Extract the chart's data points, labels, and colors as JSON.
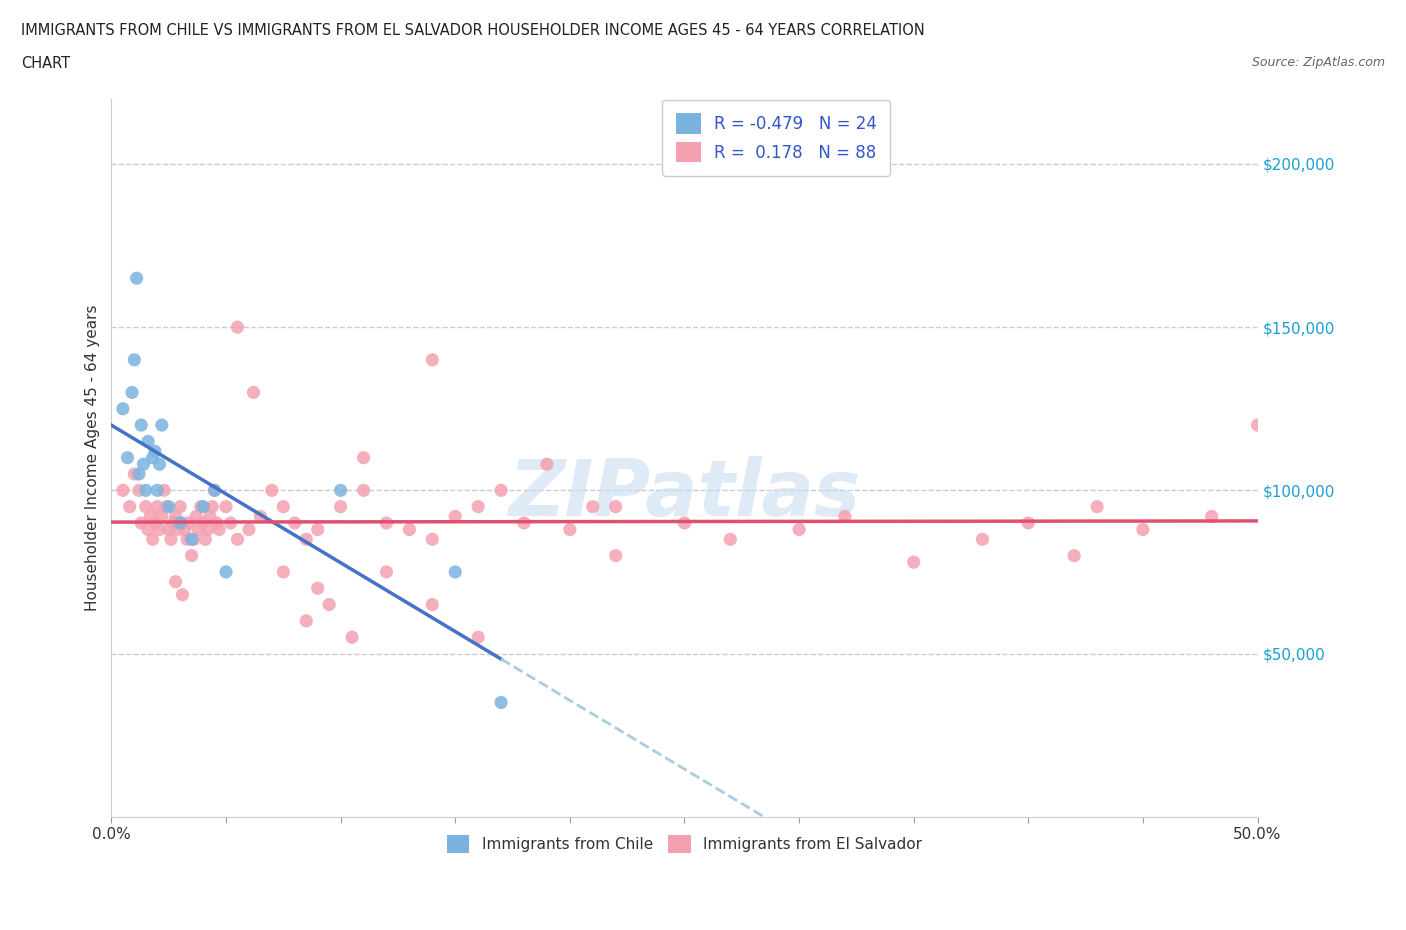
{
  "title_line1": "IMMIGRANTS FROM CHILE VS IMMIGRANTS FROM EL SALVADOR HOUSEHOLDER INCOME AGES 45 - 64 YEARS CORRELATION",
  "title_line2": "CHART",
  "source_text": "Source: ZipAtlas.com",
  "ylabel": "Householder Income Ages 45 - 64 years",
  "background_color": "#ffffff",
  "grid_color": "#cccccc",
  "watermark_text": "ZIPatlas",
  "chile_color": "#7ab3e0",
  "chile_line_color": "#4472c4",
  "salvador_color": "#f4a0b0",
  "salvador_line_color": "#e05070",
  "dash_color": "#aaccdd",
  "chile_R": -0.479,
  "chile_N": 24,
  "salvador_R": 0.178,
  "salvador_N": 88,
  "xlim": [
    0.0,
    0.5
  ],
  "ylim": [
    0,
    220000
  ],
  "yticks": [
    0,
    50000,
    100000,
    150000,
    200000
  ],
  "ytick_labels": [
    "",
    "$50,000",
    "$100,000",
    "$150,000",
    "$200,000"
  ],
  "xticks": [
    0.0,
    0.05,
    0.1,
    0.15,
    0.2,
    0.25,
    0.3,
    0.35,
    0.4,
    0.45,
    0.5
  ],
  "chile_x": [
    0.005,
    0.007,
    0.009,
    0.01,
    0.011,
    0.012,
    0.013,
    0.014,
    0.015,
    0.016,
    0.018,
    0.019,
    0.02,
    0.021,
    0.022,
    0.025,
    0.03,
    0.035,
    0.04,
    0.045,
    0.05,
    0.1,
    0.15,
    0.17
  ],
  "chile_y": [
    125000,
    110000,
    130000,
    140000,
    165000,
    105000,
    120000,
    108000,
    100000,
    115000,
    110000,
    112000,
    100000,
    108000,
    120000,
    95000,
    90000,
    85000,
    95000,
    100000,
    75000,
    100000,
    75000,
    35000
  ],
  "salvador_x": [
    0.005,
    0.008,
    0.01,
    0.012,
    0.013,
    0.015,
    0.016,
    0.017,
    0.018,
    0.019,
    0.02,
    0.021,
    0.022,
    0.023,
    0.024,
    0.025,
    0.026,
    0.027,
    0.028,
    0.029,
    0.03,
    0.031,
    0.032,
    0.033,
    0.034,
    0.035,
    0.036,
    0.037,
    0.038,
    0.039,
    0.04,
    0.041,
    0.042,
    0.043,
    0.044,
    0.045,
    0.046,
    0.047,
    0.05,
    0.052,
    0.055,
    0.06,
    0.065,
    0.07,
    0.075,
    0.08,
    0.085,
    0.09,
    0.1,
    0.11,
    0.12,
    0.13,
    0.14,
    0.15,
    0.16,
    0.17,
    0.18,
    0.2,
    0.22,
    0.25,
    0.27,
    0.3,
    0.32,
    0.35,
    0.38,
    0.4,
    0.42,
    0.43,
    0.45,
    0.48,
    0.5,
    0.14,
    0.19,
    0.21,
    0.12,
    0.085,
    0.095,
    0.105,
    0.055,
    0.062,
    0.028,
    0.031,
    0.14,
    0.22,
    0.16,
    0.09,
    0.075,
    0.11
  ],
  "salvador_y": [
    100000,
    95000,
    105000,
    100000,
    90000,
    95000,
    88000,
    92000,
    85000,
    90000,
    95000,
    88000,
    92000,
    100000,
    95000,
    88000,
    85000,
    90000,
    92000,
    88000,
    95000,
    90000,
    88000,
    85000,
    90000,
    80000,
    85000,
    92000,
    88000,
    95000,
    90000,
    85000,
    88000,
    92000,
    95000,
    100000,
    90000,
    88000,
    95000,
    90000,
    85000,
    88000,
    92000,
    100000,
    95000,
    90000,
    85000,
    88000,
    95000,
    100000,
    90000,
    88000,
    85000,
    92000,
    95000,
    100000,
    90000,
    88000,
    95000,
    90000,
    85000,
    88000,
    92000,
    78000,
    85000,
    90000,
    80000,
    95000,
    88000,
    92000,
    120000,
    140000,
    108000,
    95000,
    75000,
    60000,
    65000,
    55000,
    150000,
    130000,
    72000,
    68000,
    65000,
    80000,
    55000,
    70000,
    75000,
    110000
  ]
}
